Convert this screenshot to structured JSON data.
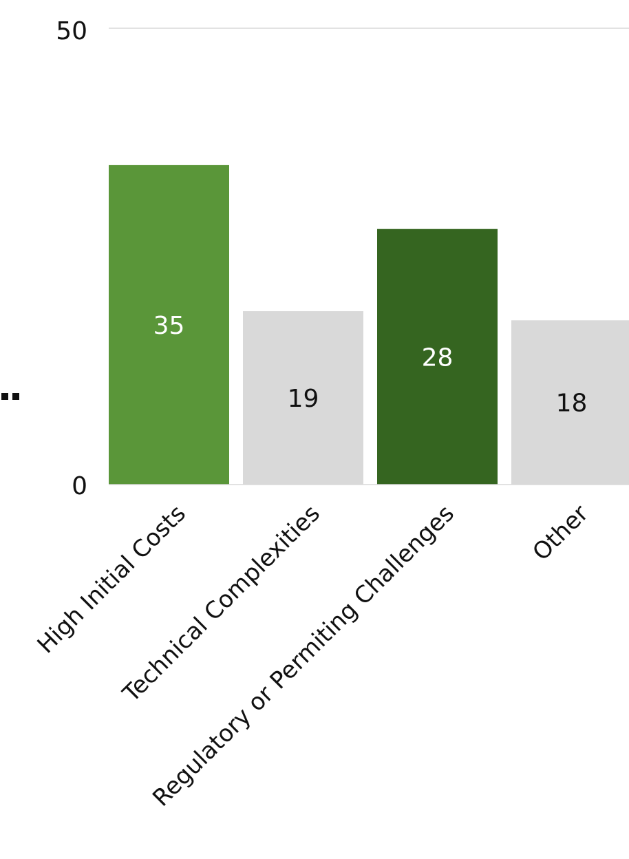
{
  "chart_data": {
    "type": "bar",
    "title": "",
    "xlabel": "",
    "ylabel": "",
    "categories": [
      "High Initial Costs",
      "Technical Complexities",
      "Regulatory or Permiting Challenges",
      "Other"
    ],
    "values": [
      35,
      19,
      28,
      18
    ],
    "bar_colors": [
      "#5a9639",
      "#d9d9d9",
      "#356520",
      "#d9d9d9"
    ],
    "label_colors": [
      "#ffffff",
      "#111111",
      "#ffffff",
      "#111111"
    ],
    "ylim": [
      0,
      50
    ],
    "yticks": [
      "0",
      "50"
    ],
    "grid": true,
    "gridline_color": "#d9d9d9",
    "legend": "none"
  }
}
